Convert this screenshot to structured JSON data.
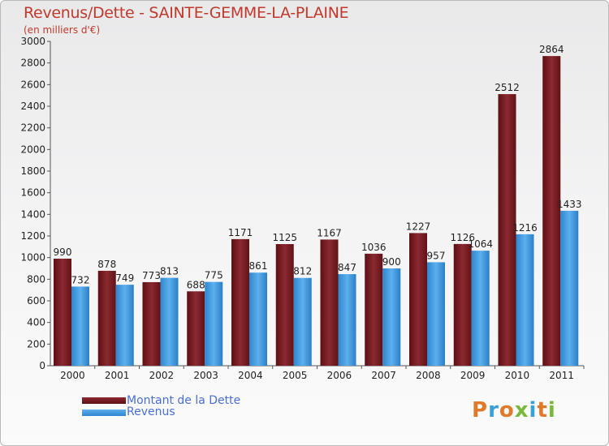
{
  "header": {
    "title": "Revenus/Dette - SAINTE-GEMME-LA-PLAINE",
    "subtitle": "(en milliers d'€)"
  },
  "legend": {
    "dette_label": "Montant de la Dette",
    "revenus_label": "Revenus"
  },
  "logo": {
    "text": "Proxiti"
  },
  "colors": {
    "dette": "#7a1e22",
    "revenus": "#3d9be0",
    "title": "#c0392b"
  },
  "chart_data": {
    "type": "bar",
    "title": "Revenus/Dette - SAINTE-GEMME-LA-PLAINE",
    "ylabel": "(en milliers d'€)",
    "xlabel": "",
    "categories": [
      "2000",
      "2001",
      "2002",
      "2003",
      "2004",
      "2005",
      "2006",
      "2007",
      "2008",
      "2009",
      "2010",
      "2011"
    ],
    "ylim": [
      0,
      3000
    ],
    "yticks": [
      0,
      200,
      400,
      600,
      800,
      1000,
      1200,
      1400,
      1600,
      1800,
      2000,
      2200,
      2400,
      2600,
      2800,
      3000
    ],
    "series": [
      {
        "name": "Montant de la Dette",
        "values": [
          990,
          878,
          773,
          688,
          1171,
          1125,
          1167,
          1036,
          1227,
          1126,
          2512,
          2864
        ]
      },
      {
        "name": "Revenus",
        "values": [
          732,
          749,
          813,
          775,
          861,
          812,
          847,
          900,
          957,
          1064,
          1216,
          1433
        ]
      }
    ],
    "legend_position": "bottom-left",
    "grid": false
  }
}
